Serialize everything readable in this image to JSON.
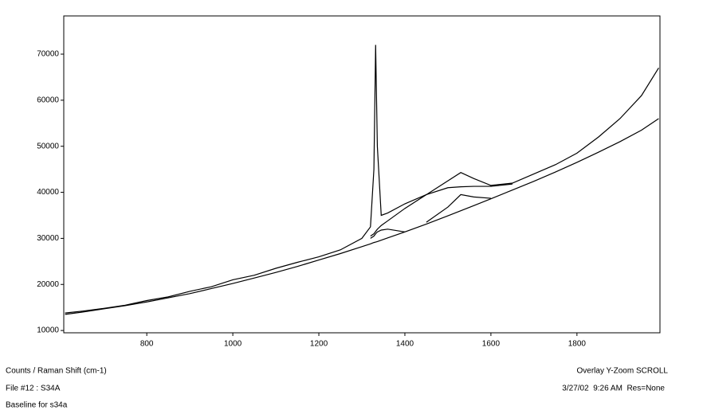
{
  "chart_data": {
    "type": "line",
    "axis_label": "Counts / Raman Shift (cm-1)",
    "file_label": "File #12 : S34A",
    "subtitle": "Baseline for s34a",
    "mode": "Overlay Y-Zoom SCROLL",
    "timestamp": "3/27/02  9:26 AM  Res=None",
    "x": [
      610,
      650,
      700,
      750,
      800,
      850,
      900,
      950,
      1000,
      1050,
      1100,
      1150,
      1200,
      1250,
      1300,
      1320,
      1328,
      1332,
      1336,
      1345,
      1360,
      1400,
      1450,
      1500,
      1530,
      1560,
      1600,
      1650,
      1700,
      1750,
      1800,
      1850,
      1900,
      1950,
      1990
    ],
    "series": [
      {
        "color": "#000000",
        "values": [
          13800,
          14200,
          14800,
          15500,
          16500,
          17300,
          18500,
          19500,
          21000,
          22000,
          23500,
          24800,
          26000,
          27500,
          30000,
          32500,
          45000,
          72000,
          50000,
          35000,
          35500,
          37500,
          39500,
          42500,
          44300,
          43000,
          41500,
          42000,
          44000,
          46000,
          48500,
          52000,
          56000,
          61000,
          67000
        ]
      },
      {
        "color": "#000000",
        "values": [
          13500,
          14000,
          14700,
          15400,
          16200,
          17100,
          18000,
          19100,
          20200,
          21400,
          22600,
          23900,
          25300,
          26700,
          28200,
          28800,
          29100,
          29200,
          29300,
          29600,
          30100,
          31400,
          33100,
          34900,
          36000,
          37100,
          38600,
          40500,
          42400,
          44400,
          46500,
          48700,
          51000,
          53500,
          56000
        ]
      },
      {
        "color": "#000000",
        "values": [
          null,
          null,
          null,
          null,
          null,
          null,
          null,
          null,
          null,
          null,
          null,
          null,
          null,
          null,
          null,
          30500,
          31000,
          31500,
          32000,
          32800,
          33800,
          36500,
          39500,
          41000,
          41200,
          41300,
          41300,
          41800,
          null,
          null,
          null,
          null,
          null,
          null,
          null
        ]
      },
      {
        "color": "#000000",
        "values": [
          null,
          null,
          null,
          null,
          null,
          null,
          null,
          null,
          null,
          null,
          null,
          null,
          null,
          null,
          null,
          null,
          null,
          null,
          null,
          null,
          null,
          null,
          33500,
          36800,
          39500,
          39000,
          38700,
          null,
          null,
          null,
          null,
          null,
          null,
          null,
          null
        ]
      },
      {
        "color": "#000000",
        "values": [
          null,
          null,
          null,
          null,
          null,
          null,
          null,
          null,
          null,
          null,
          null,
          null,
          null,
          null,
          null,
          30000,
          30500,
          31000,
          31400,
          31800,
          32000,
          31400,
          null,
          null,
          null,
          null,
          null,
          null,
          null,
          null,
          null,
          null,
          null,
          null,
          null
        ]
      }
    ],
    "xlim": [
      607,
      1993
    ],
    "ylim": [
      9500,
      78300
    ],
    "xticks": [
      800,
      1000,
      1200,
      1400,
      1600,
      1800
    ],
    "yticks": [
      10000,
      20000,
      30000,
      40000,
      50000,
      60000,
      70000
    ],
    "grid": false
  }
}
